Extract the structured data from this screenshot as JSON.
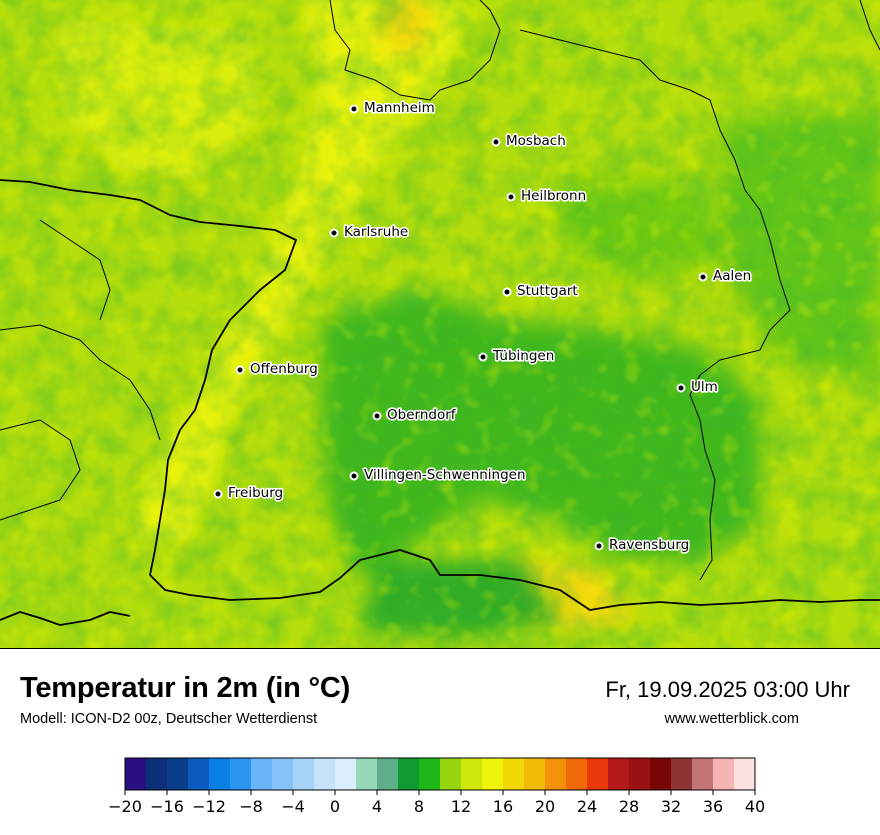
{
  "title": "Temperatur in 2m (in °C)",
  "model": "Modell: ICON-D2 00z, Deutscher Wetterdienst",
  "datetime": "Fr, 19.09.2025 03:00 Uhr",
  "website": "www.wetterblick.com",
  "cities": [
    {
      "name": "Mannheim"
    },
    {
      "name": "Mosbach"
    },
    {
      "name": "Heilbronn"
    },
    {
      "name": "Karlsruhe"
    },
    {
      "name": "Aalen"
    },
    {
      "name": "Stuttgart"
    },
    {
      "name": "Tübingen"
    },
    {
      "name": "Offenburg"
    },
    {
      "name": "Ulm"
    },
    {
      "name": "Oberndorf"
    },
    {
      "name": "Villingen-Schwenningen"
    },
    {
      "name": "Freiburg"
    },
    {
      "name": "Ravensburg"
    }
  ],
  "legend": {
    "ticks": [
      "−20",
      "−16",
      "−12",
      "−8",
      "−4",
      "0",
      "4",
      "8",
      "12",
      "16",
      "20",
      "24",
      "28",
      "32",
      "36",
      "40"
    ],
    "colors": [
      "#2b0e82",
      "#0c2f7a",
      "#083e8a",
      "#0a5bbd",
      "#0a7fe6",
      "#2a96f2",
      "#67b5f7",
      "#86c3f8",
      "#a8d3f9",
      "#c6e2fb",
      "#dbeefd",
      "#96d9b8",
      "#5fae8a",
      "#0e9a30",
      "#1fb717",
      "#97d40b",
      "#cfe60a",
      "#eef50a",
      "#f1d807",
      "#f2bb08",
      "#f39108",
      "#f06a0a",
      "#e9390a",
      "#b01918",
      "#9b1012",
      "#7a0505",
      "#8f3434",
      "#c47474",
      "#f4b4b4",
      "#fde0e0"
    ]
  }
}
